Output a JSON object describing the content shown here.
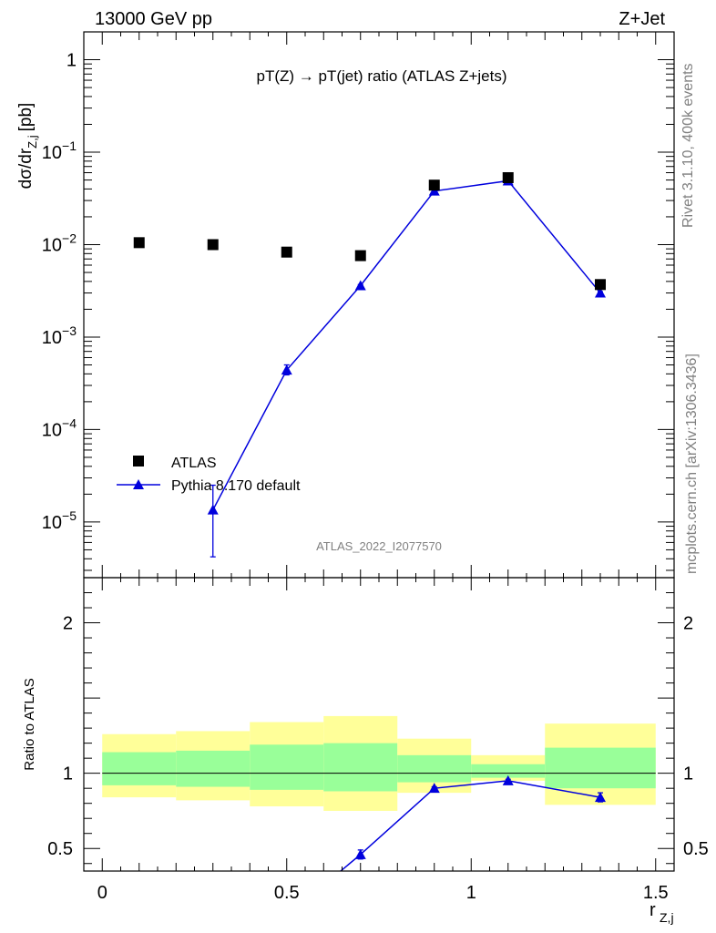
{
  "header": {
    "left": "13000 GeV pp",
    "right": "Z+Jet"
  },
  "side_labels": {
    "rivet": "Rivet 3.1.10,  400k events",
    "mcplots": "mcplots.cern.ch [arXiv:1306.3436]"
  },
  "chart_data": [
    {
      "type": "scatter",
      "title": "pT(Z) → pT(jet) ratio (ATLAS Z+jets)",
      "watermark": "ATLAS_2022_I2077570",
      "xlabel": "r",
      "xlabel_sub": "Z,j",
      "ylabel": "dσ/dr",
      "ylabel_sub": "Z,j",
      "ylabel_unit": "[pb]",
      "yscale": "log",
      "ylim": [
        2.5e-06,
        2.0
      ],
      "xlim": [
        -0.05,
        1.55
      ],
      "y_ticks": [
        {
          "value": 1,
          "base": "1",
          "exp": ""
        },
        {
          "value": 0.1,
          "base": "10",
          "exp": "−1"
        },
        {
          "value": 0.01,
          "base": "10",
          "exp": "−2"
        },
        {
          "value": 0.001,
          "base": "10",
          "exp": "−3"
        },
        {
          "value": 0.0001,
          "base": "10",
          "exp": "−4"
        },
        {
          "value": 1e-05,
          "base": "10",
          "exp": "−5"
        }
      ],
      "legend_position": "bottom-left",
      "series": [
        {
          "name": "ATLAS",
          "marker": "square",
          "color": "#000000",
          "x": [
            0.1,
            0.3,
            0.5,
            0.7,
            0.9,
            1.1,
            1.35
          ],
          "y": [
            0.0105,
            0.01,
            0.0083,
            0.0076,
            0.044,
            0.053,
            0.0037
          ]
        },
        {
          "name": "Pythia 8.170 default",
          "marker": "triangle",
          "color": "#0000dd",
          "x": [
            0.3,
            0.5,
            0.7,
            0.9,
            1.1,
            1.35
          ],
          "y": [
            1.35e-05,
            0.00044,
            0.0036,
            0.038,
            0.049,
            0.003
          ],
          "err_low": [
            4.2e-06,
            0.00039,
            0.0035,
            0.037,
            0.048,
            0.0029
          ],
          "err_high": [
            2.5e-05,
            0.0005,
            0.0037,
            0.039,
            0.05,
            0.0031
          ]
        }
      ]
    },
    {
      "type": "scatter",
      "ylabel": "Ratio to ATLAS",
      "xlabel": "r",
      "xlabel_sub": "Z,j",
      "yscale": "linear",
      "ylim": [
        0.35,
        2.3
      ],
      "xlim": [
        -0.05,
        1.55
      ],
      "y_ticks": [
        0.5,
        1,
        2
      ],
      "y_tick_labels": [
        "0.5",
        "1",
        "2"
      ],
      "x_ticks": [
        0,
        0.5,
        1,
        1.5
      ],
      "x_tick_labels": [
        "0",
        "0.5",
        "1",
        "1.5"
      ],
      "bands": [
        {
          "x0": 0.0,
          "x1": 0.2,
          "yellow": [
            0.84,
            1.26
          ],
          "green": [
            0.92,
            1.14
          ]
        },
        {
          "x0": 0.2,
          "x1": 0.4,
          "yellow": [
            0.82,
            1.28
          ],
          "green": [
            0.91,
            1.15
          ]
        },
        {
          "x0": 0.4,
          "x1": 0.6,
          "yellow": [
            0.78,
            1.34
          ],
          "green": [
            0.89,
            1.19
          ]
        },
        {
          "x0": 0.6,
          "x1": 0.8,
          "yellow": [
            0.75,
            1.38
          ],
          "green": [
            0.88,
            1.2
          ]
        },
        {
          "x0": 0.8,
          "x1": 1.0,
          "yellow": [
            0.87,
            1.23
          ],
          "green": [
            0.94,
            1.12
          ]
        },
        {
          "x0": 1.0,
          "x1": 1.2,
          "yellow": [
            0.95,
            1.12
          ],
          "green": [
            0.97,
            1.06
          ]
        },
        {
          "x0": 1.2,
          "x1": 1.5,
          "yellow": [
            0.79,
            1.33
          ],
          "green": [
            0.9,
            1.17
          ]
        }
      ],
      "ratio_series": {
        "name": "Pythia 8.170 default",
        "color": "#0000dd",
        "x": [
          0.7,
          0.9,
          1.1,
          1.35
        ],
        "y": [
          0.46,
          0.9,
          0.95,
          0.84
        ],
        "err_low": [
          0.43,
          0.89,
          0.94,
          0.81
        ],
        "err_high": [
          0.49,
          0.91,
          0.96,
          0.87
        ]
      }
    }
  ]
}
